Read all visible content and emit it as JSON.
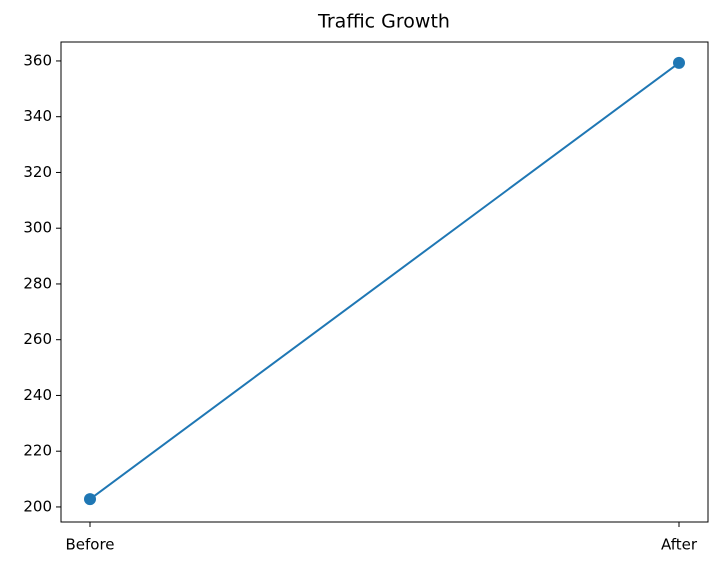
{
  "chart_data": {
    "type": "line",
    "title": "Traffic Growth",
    "categories": [
      "Before",
      "After"
    ],
    "values": [
      202.8,
      359.3
    ],
    "color": "#1f77b4",
    "ylim": [
      194.6,
      366.8
    ],
    "yticks": [
      200,
      220,
      240,
      260,
      280,
      300,
      320,
      340,
      360
    ],
    "grid": false
  }
}
